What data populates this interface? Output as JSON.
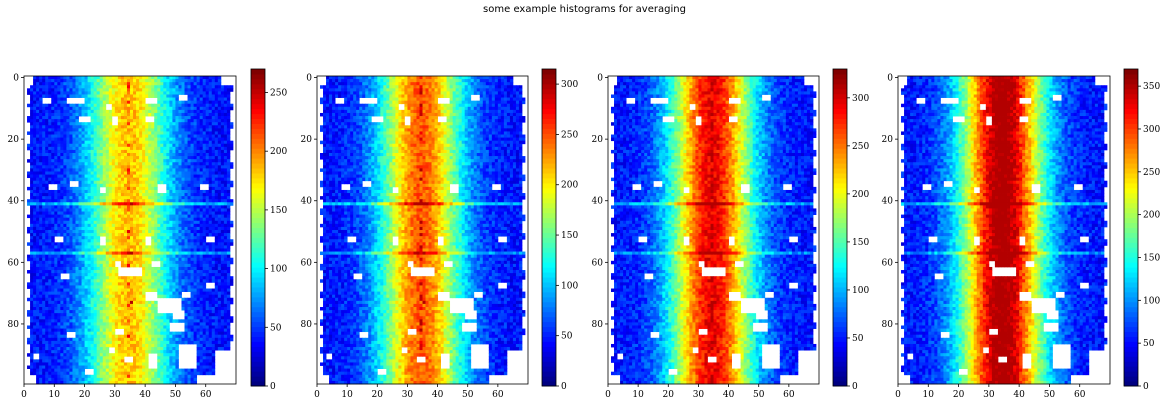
{
  "suptitle": "some example histograms for averaging",
  "chart_data": [
    {
      "type": "heatmap",
      "colormap": "jet",
      "grid": false,
      "x_range": [
        0,
        70
      ],
      "y_range": [
        100,
        0
      ],
      "x_ticks": [
        "0",
        "10",
        "20",
        "30",
        "40",
        "50",
        "60"
      ],
      "y_ticks": [
        "0",
        "20",
        "40",
        "60",
        "80"
      ],
      "color_range": [
        0,
        270
      ],
      "colorbar_ticks": [
        "0",
        "50",
        "100",
        "150",
        "200",
        "250"
      ]
    },
    {
      "type": "heatmap",
      "colormap": "jet",
      "grid": false,
      "x_range": [
        0,
        70
      ],
      "y_range": [
        100,
        0
      ],
      "x_ticks": [
        "0",
        "10",
        "20",
        "30",
        "40",
        "50",
        "60"
      ],
      "y_ticks": [
        "0",
        "20",
        "40",
        "60",
        "80"
      ],
      "color_range": [
        0,
        315
      ],
      "colorbar_ticks": [
        "0",
        "50",
        "100",
        "150",
        "200",
        "250",
        "300"
      ]
    },
    {
      "type": "heatmap",
      "colormap": "jet",
      "grid": false,
      "x_range": [
        0,
        70
      ],
      "y_range": [
        100,
        0
      ],
      "x_ticks": [
        "0",
        "10",
        "20",
        "30",
        "40",
        "50",
        "60"
      ],
      "y_ticks": [
        "0",
        "20",
        "40",
        "60",
        "80"
      ],
      "color_range": [
        0,
        330
      ],
      "colorbar_ticks": [
        "0",
        "50",
        "100",
        "150",
        "200",
        "250",
        "300"
      ]
    },
    {
      "type": "heatmap",
      "colormap": "jet",
      "grid": false,
      "x_range": [
        0,
        70
      ],
      "y_range": [
        100,
        0
      ],
      "x_ticks": [
        "0",
        "10",
        "20",
        "30",
        "40",
        "50",
        "60"
      ],
      "y_ticks": [
        "0",
        "20",
        "40",
        "60",
        "80"
      ],
      "color_range": [
        0,
        370
      ],
      "colorbar_ticks": [
        "0",
        "50",
        "100",
        "150",
        "200",
        "250",
        "300",
        "350"
      ]
    }
  ]
}
